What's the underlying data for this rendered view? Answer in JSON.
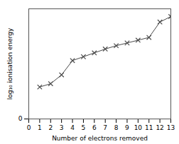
{
  "chart_data": {
    "type": "line",
    "x": [
      1,
      2,
      3,
      4,
      5,
      6,
      7,
      8,
      9,
      10,
      11,
      12,
      13
    ],
    "values": [
      0.58,
      0.64,
      0.8,
      1.06,
      1.13,
      1.2,
      1.27,
      1.33,
      1.38,
      1.43,
      1.48,
      1.76,
      1.86
    ],
    "xlabel": "Number of electrons removed",
    "ylabel": "log₁₀ ionisation energy",
    "xlim": [
      0,
      13
    ],
    "ylim": [
      0,
      2.0
    ],
    "xticks": [
      0,
      1,
      2,
      3,
      4,
      5,
      6,
      7,
      8,
      9,
      10,
      11,
      12,
      13
    ],
    "yticks": [
      0
    ],
    "color": "#4a4a4a",
    "marker": "x"
  }
}
